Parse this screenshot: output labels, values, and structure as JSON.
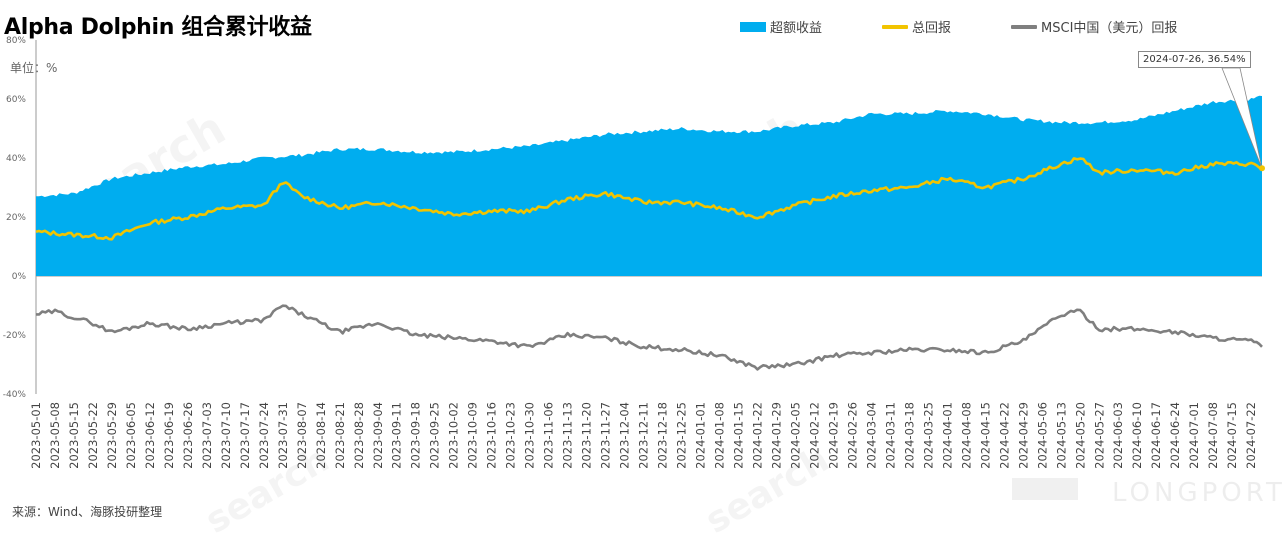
{
  "title": "Alpha Dolphin 组合累计收益",
  "unit_label": "单位：%",
  "source": "来源：Wind、海豚投研整理",
  "tooltip": "2024-07-26, 36.54%",
  "watermark": "search",
  "watermark_brand": "LONGPORT",
  "legend": [
    {
      "name": "超额收益",
      "color": "#00ADEF",
      "kind": "area"
    },
    {
      "name": "总回报",
      "color": "#F2C400",
      "kind": "line"
    },
    {
      "name": "MSCI中国（美元）回报",
      "color": "#7F7F7F",
      "kind": "line"
    }
  ],
  "chart_data": {
    "type": "line",
    "x_start": "2023-05-01",
    "x_end": "2024-07-26",
    "x_tick_labels": [
      "2023-05-01",
      "2023-05-08",
      "2023-05-15",
      "2023-05-22",
      "2023-05-29",
      "2023-06-05",
      "2023-06-12",
      "2023-06-19",
      "2023-06-26",
      "2023-07-03",
      "2023-07-10",
      "2023-07-17",
      "2023-07-24",
      "2023-07-31",
      "2023-08-07",
      "2023-08-14",
      "2023-08-21",
      "2023-08-28",
      "2023-09-04",
      "2023-09-11",
      "2023-09-18",
      "2023-09-25",
      "2023-10-02",
      "2023-10-09",
      "2023-10-16",
      "2023-10-23",
      "2023-10-30",
      "2023-11-06",
      "2023-11-13",
      "2023-11-20",
      "2023-11-27",
      "2023-12-04",
      "2023-12-11",
      "2023-12-18",
      "2023-12-25",
      "2024-01-01",
      "2024-01-08",
      "2024-01-15",
      "2024-01-22",
      "2024-01-29",
      "2024-02-05",
      "2024-02-12",
      "2024-02-19",
      "2024-02-26",
      "2024-03-04",
      "2024-03-11",
      "2024-03-18",
      "2024-03-25",
      "2024-04-01",
      "2024-04-08",
      "2024-04-15",
      "2024-04-22",
      "2024-04-29",
      "2024-05-06",
      "2024-05-13",
      "2024-05-20",
      "2024-05-27",
      "2024-06-03",
      "2024-06-10",
      "2024-06-17",
      "2024-06-24",
      "2024-07-01",
      "2024-07-08",
      "2024-07-15",
      "2024-07-22"
    ],
    "y_tick_labels": [
      "80%",
      "60%",
      "40%",
      "20%",
      "0%",
      "-20%",
      "-40%"
    ],
    "ylim": [
      -40,
      80
    ],
    "y_ticks": [
      80,
      60,
      40,
      20,
      0,
      -20,
      -40
    ],
    "series": [
      {
        "name": "超额收益",
        "type": "area",
        "color": "#00ADEF",
        "x": [
          "2023-05-01",
          "2023-05-15",
          "2023-05-29",
          "2023-06-12",
          "2023-06-26",
          "2023-07-10",
          "2023-07-24",
          "2023-08-07",
          "2023-08-21",
          "2023-09-04",
          "2023-09-18",
          "2023-10-02",
          "2023-10-16",
          "2023-10-30",
          "2023-11-13",
          "2023-11-27",
          "2023-12-11",
          "2023-12-25",
          "2024-01-08",
          "2024-01-22",
          "2024-02-05",
          "2024-02-19",
          "2024-03-04",
          "2024-03-18",
          "2024-04-01",
          "2024-04-15",
          "2024-04-29",
          "2024-05-13",
          "2024-05-27",
          "2024-06-10",
          "2024-06-24",
          "2024-07-08",
          "2024-07-22",
          "2024-07-26"
        ],
        "values": [
          27,
          28,
          33,
          35,
          37,
          38,
          40,
          41,
          43,
          43,
          42,
          42,
          43,
          44,
          46,
          48,
          49,
          50,
          49,
          49,
          51,
          52,
          55,
          55,
          56,
          55,
          53,
          52,
          52,
          53,
          56,
          59,
          60,
          61
        ]
      },
      {
        "name": "总回报",
        "type": "line",
        "color": "#F2C400",
        "x": [
          "2023-05-01",
          "2023-05-15",
          "2023-05-29",
          "2023-06-12",
          "2023-06-26",
          "2023-07-10",
          "2023-07-24",
          "2023-07-31",
          "2023-08-07",
          "2023-08-21",
          "2023-09-04",
          "2023-09-18",
          "2023-10-02",
          "2023-10-16",
          "2023-10-30",
          "2023-11-13",
          "2023-11-27",
          "2023-12-11",
          "2023-12-25",
          "2024-01-08",
          "2024-01-22",
          "2024-02-05",
          "2024-02-19",
          "2024-03-04",
          "2024-03-18",
          "2024-04-01",
          "2024-04-15",
          "2024-04-29",
          "2024-05-13",
          "2024-05-20",
          "2024-05-27",
          "2024-06-10",
          "2024-06-24",
          "2024-07-08",
          "2024-07-22",
          "2024-07-26"
        ],
        "values": [
          15,
          14,
          13,
          18,
          20,
          23,
          24,
          32,
          27,
          23,
          25,
          23,
          21,
          22,
          22,
          26,
          28,
          25,
          25,
          23,
          20,
          24,
          27,
          29,
          30,
          33,
          30,
          33,
          38,
          40,
          35,
          36,
          35,
          38,
          38,
          36.54
        ]
      },
      {
        "name": "MSCI中国（美元）回报",
        "type": "line",
        "color": "#7F7F7F",
        "x": [
          "2023-05-01",
          "2023-05-08",
          "2023-05-15",
          "2023-05-22",
          "2023-05-29",
          "2023-06-12",
          "2023-06-26",
          "2023-07-10",
          "2023-07-24",
          "2023-07-31",
          "2023-08-07",
          "2023-08-21",
          "2023-09-04",
          "2023-09-18",
          "2023-10-02",
          "2023-10-16",
          "2023-10-30",
          "2023-11-13",
          "2023-11-27",
          "2023-12-11",
          "2023-12-25",
          "2024-01-08",
          "2024-01-22",
          "2024-02-05",
          "2024-02-19",
          "2024-03-04",
          "2024-03-18",
          "2024-04-01",
          "2024-04-15",
          "2024-04-29",
          "2024-05-13",
          "2024-05-20",
          "2024-05-27",
          "2024-06-10",
          "2024-06-24",
          "2024-07-08",
          "2024-07-22",
          "2024-07-26"
        ],
        "values": [
          -13,
          -12,
          -14,
          -16,
          -19,
          -16,
          -18,
          -16,
          -15,
          -10,
          -13,
          -19,
          -16,
          -20,
          -21,
          -22,
          -24,
          -20,
          -21,
          -24,
          -25,
          -27,
          -31,
          -30,
          -27,
          -26,
          -25,
          -25,
          -26,
          -22,
          -13,
          -12,
          -18,
          -18,
          -19,
          -21,
          -22,
          -24
        ]
      }
    ]
  }
}
